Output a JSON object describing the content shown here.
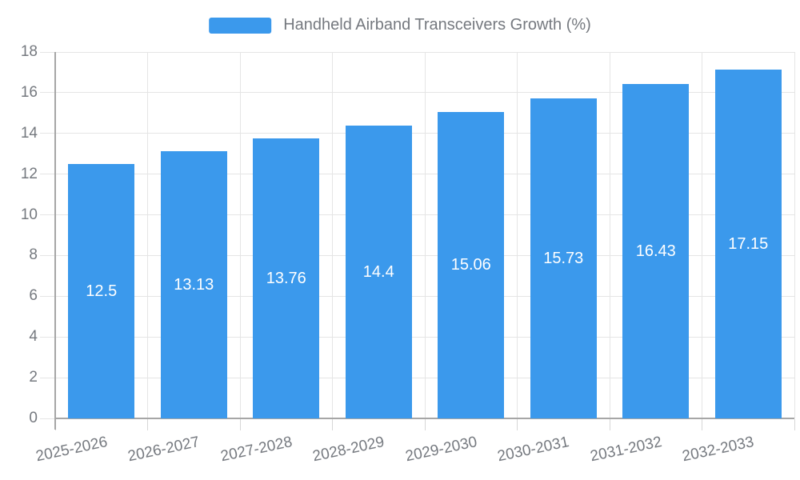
{
  "legend": {
    "label": "Handheld Airband Transceivers Growth (%)"
  },
  "chart_data": {
    "type": "bar",
    "title": "Handheld Airband Transceivers Growth (%)",
    "categories": [
      "2025-2026",
      "2026-2027",
      "2027-2028",
      "2028-2029",
      "2029-2030",
      "2030-2031",
      "2031-2032",
      "2032-2033"
    ],
    "values": [
      12.5,
      13.13,
      13.76,
      14.4,
      15.06,
      15.73,
      16.43,
      17.15
    ],
    "value_labels": [
      "12.5",
      "13.13",
      "13.76",
      "14.4",
      "15.06",
      "15.73",
      "16.43",
      "17.15"
    ],
    "xlabel": "",
    "ylabel": "",
    "ylim": [
      0,
      18
    ],
    "yticks": [
      0,
      2,
      4,
      6,
      8,
      10,
      12,
      14,
      16,
      18
    ],
    "grid": true,
    "legend_position": "top-center",
    "bar_label_position": "inside-middle",
    "colors": {
      "bar": "#3B99EC",
      "bar_label": "#FFFFFF",
      "axis_line": "#A6A6A6",
      "axis_tick": "#D6D6D6",
      "gridline": "#E5E5E5",
      "text": "#75797F",
      "background": "#FFFFFF"
    }
  }
}
